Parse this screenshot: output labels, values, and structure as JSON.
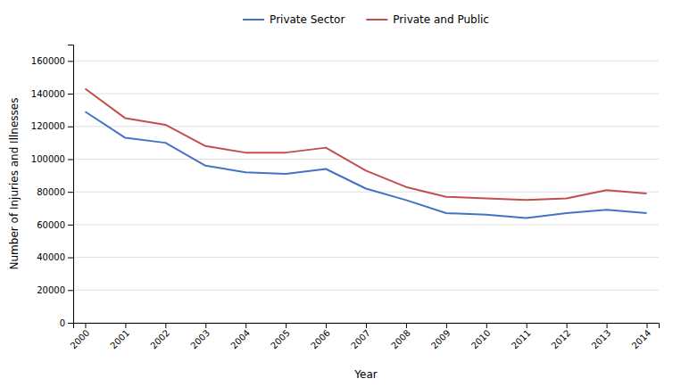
{
  "chart_data": {
    "type": "line",
    "x": [
      2000,
      2001,
      2002,
      2003,
      2004,
      2005,
      2006,
      2007,
      2008,
      2009,
      2010,
      2011,
      2012,
      2013,
      2014
    ],
    "series": [
      {
        "name": "Private Sector",
        "color": "#4472C4",
        "values": [
          129000,
          113000,
          110000,
          96000,
          92000,
          91000,
          94000,
          82000,
          75000,
          67000,
          66000,
          64000,
          67000,
          69000,
          67000
        ]
      },
      {
        "name": "Private and Public",
        "color": "#C0504D",
        "values": [
          143000,
          125000,
          121000,
          108000,
          104000,
          104000,
          107000,
          93000,
          83000,
          77000,
          76000,
          75000,
          76000,
          81000,
          79000
        ]
      }
    ],
    "xlabel": "Year",
    "ylabel": "Number of Injuries and Illnesses",
    "xlim": [
      1999.7,
      2014.3
    ],
    "xticks": [
      2000,
      2001,
      2002,
      2003,
      2004,
      2005,
      2006,
      2007,
      2008,
      2009,
      2010,
      2011,
      2012,
      2013,
      2014
    ],
    "ylim": [
      0,
      170000
    ],
    "yticks": [
      0,
      20000,
      40000,
      60000,
      80000,
      100000,
      120000,
      140000,
      160000
    ],
    "grid": "y",
    "legend": "top"
  }
}
